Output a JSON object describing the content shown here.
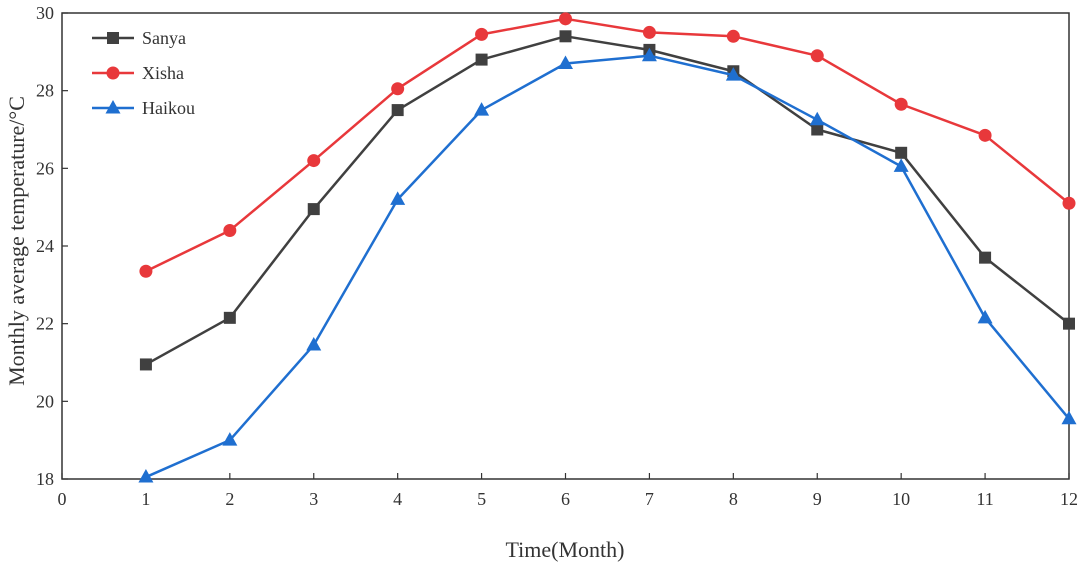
{
  "chart_data": {
    "type": "line",
    "xlabel": "Time(Month)",
    "ylabel": "Monthly average temperature/°C",
    "xlim": [
      0,
      12
    ],
    "ylim": [
      18,
      30
    ],
    "xticks": [
      0,
      1,
      2,
      3,
      4,
      5,
      6,
      7,
      8,
      9,
      10,
      11,
      12
    ],
    "yticks": [
      18,
      20,
      22,
      24,
      26,
      28,
      30
    ],
    "grid": false,
    "legend_position": "top-left",
    "x": [
      1,
      2,
      3,
      4,
      5,
      6,
      7,
      8,
      9,
      10,
      11,
      12
    ],
    "series": [
      {
        "name": "Sanya",
        "color": "#404040",
        "marker": "square",
        "values": [
          20.95,
          22.15,
          24.95,
          27.5,
          28.8,
          29.4,
          29.05,
          28.5,
          27.0,
          26.4,
          23.7,
          22.0
        ]
      },
      {
        "name": "Xisha",
        "color": "#e8383b",
        "marker": "circle",
        "values": [
          23.35,
          24.4,
          26.2,
          28.05,
          29.45,
          29.85,
          29.5,
          29.4,
          28.9,
          27.65,
          26.85,
          25.1
        ]
      },
      {
        "name": "Haikou",
        "color": "#1f6fd0",
        "marker": "triangle",
        "values": [
          18.05,
          19.0,
          21.45,
          25.2,
          27.5,
          28.7,
          28.9,
          28.4,
          27.25,
          26.05,
          22.15,
          19.55
        ]
      }
    ]
  }
}
